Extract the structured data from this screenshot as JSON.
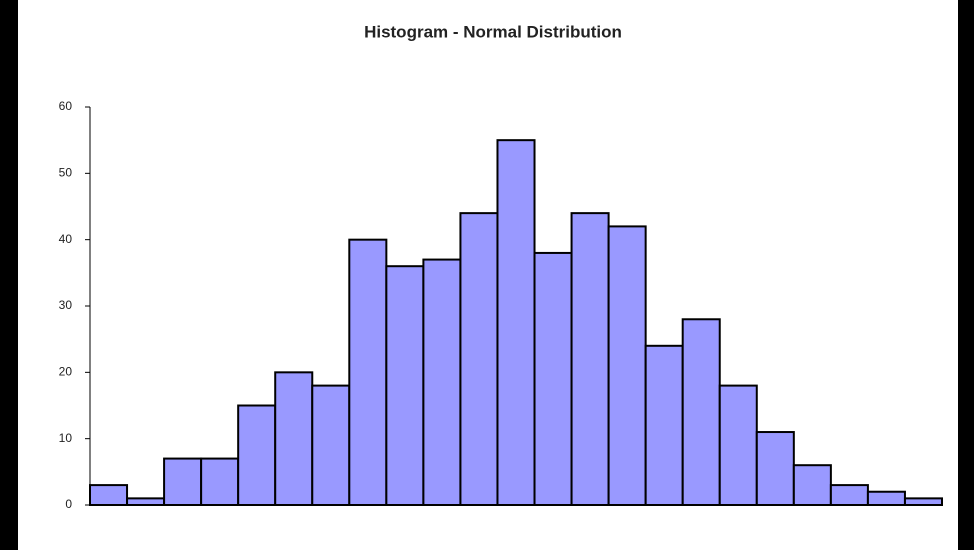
{
  "chart_data": {
    "type": "bar",
    "title": "Histogram - Normal Distribution",
    "categories": [
      null,
      null,
      null,
      null,
      null,
      null,
      null,
      null,
      null,
      null,
      null,
      null,
      null,
      null,
      null,
      null,
      null,
      null,
      null,
      null,
      null,
      null,
      null
    ],
    "values": [
      3,
      1,
      7,
      7,
      15,
      20,
      18,
      40,
      36,
      37,
      44,
      55,
      38,
      44,
      42,
      24,
      28,
      18,
      11,
      6,
      3,
      2,
      1
    ],
    "color": "#9999ff",
    "ylim": [
      0,
      60
    ],
    "yticks": [
      0,
      10,
      20,
      30,
      40,
      50,
      60
    ],
    "grid": false
  }
}
